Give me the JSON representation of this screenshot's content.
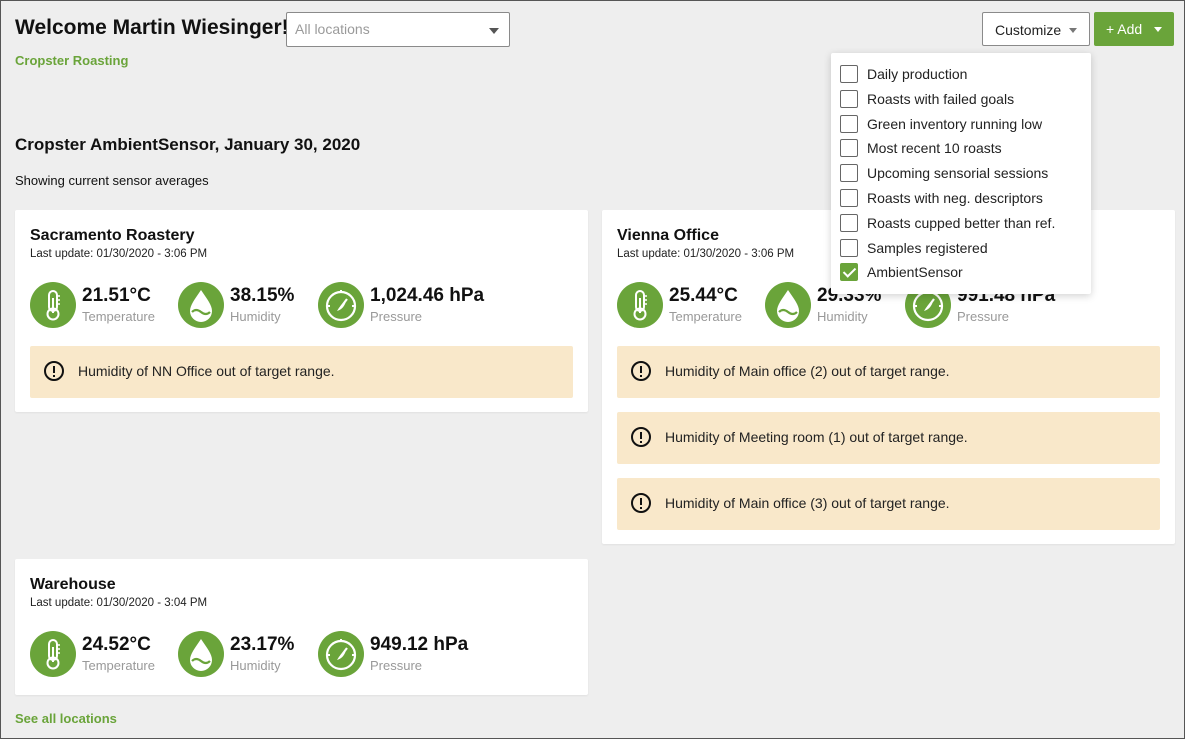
{
  "header": {
    "welcome": "Welcome Martin Wiesinger!",
    "company": "Cropster Roasting",
    "location_placeholder": "All locations",
    "customize_label": "Customize",
    "add_label": "+ Add"
  },
  "section": {
    "title": "Cropster AmbientSensor, January 30, 2020",
    "subtitle": "Showing current sensor averages"
  },
  "cards": [
    {
      "name": "Sacramento Roastery",
      "last_update": "Last update: 01/30/2020 - 3:06 PM",
      "temperature": "21.51°C",
      "humidity": "38.15%",
      "pressure": "1,024.46 hPa",
      "alerts": [
        "Humidity of NN Office out of target range."
      ]
    },
    {
      "name": "Vienna Office",
      "last_update": "Last update: 01/30/2020 - 3:06 PM",
      "temperature": "25.44°C",
      "humidity": "29.33%",
      "pressure": "991.48 hPa",
      "alerts": [
        "Humidity of Main office (2) out of target range.",
        "Humidity of Meeting room (1) out of target range.",
        "Humidity of Main office (3) out of target range."
      ]
    },
    {
      "name": "Warehouse",
      "last_update": "Last update: 01/30/2020 - 3:04 PM",
      "temperature": "24.52°C",
      "humidity": "23.17%",
      "pressure": "949.12 hPa",
      "alerts": []
    }
  ],
  "labels": {
    "temperature": "Temperature",
    "humidity": "Humidity",
    "pressure": "Pressure"
  },
  "footer": {
    "see_all": "See all locations"
  },
  "customize_menu": [
    {
      "label": "Daily production",
      "checked": false
    },
    {
      "label": "Roasts with failed goals",
      "checked": false
    },
    {
      "label": "Green inventory running low",
      "checked": false
    },
    {
      "label": "Most recent 10 roasts",
      "checked": false
    },
    {
      "label": "Upcoming sensorial sessions",
      "checked": false
    },
    {
      "label": "Roasts with neg. descriptors",
      "checked": false
    },
    {
      "label": "Roasts cupped better than ref.",
      "checked": false
    },
    {
      "label": "Samples registered",
      "checked": false
    },
    {
      "label": "AmbientSensor",
      "checked": true
    }
  ],
  "colors": {
    "accent": "#6aa43a",
    "alert_bg": "#f9e8ca",
    "background": "#eeeeee"
  },
  "icons": [
    "thermometer-icon",
    "droplet-icon",
    "gauge-icon",
    "alert-circle-icon",
    "chevron-down-icon"
  ]
}
